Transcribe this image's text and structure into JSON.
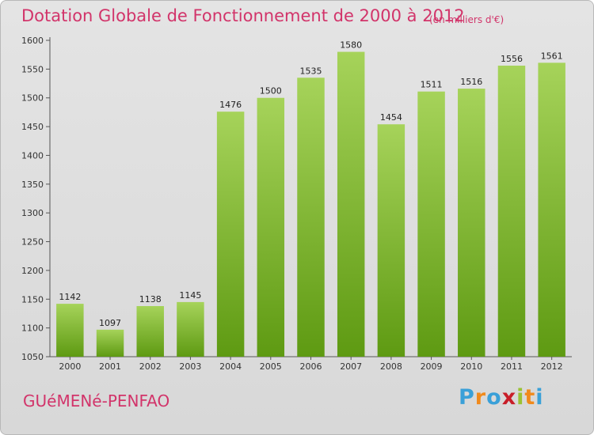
{
  "header": {
    "title": "Dotation Globale de Fonctionnement de 2000 à 2012",
    "subtitle": "(en milliers d'€)"
  },
  "footer": {
    "commune": "GUéMENé-PENFAO",
    "logo": {
      "letters": [
        "P",
        "r",
        "o",
        "x",
        "i",
        "t",
        "i"
      ],
      "colors": [
        "#3aa0d8",
        "#f08a1c",
        "#3aa0d8",
        "#c81e28",
        "#9bc233",
        "#f08a1c",
        "#3aa0d8"
      ]
    }
  },
  "colors": {
    "bar_top": "#a6d35a",
    "bar_bottom": "#5e9a12",
    "title": "#d2346a"
  },
  "chart_data": {
    "type": "bar",
    "categories": [
      "2000",
      "2001",
      "2002",
      "2003",
      "2004",
      "2005",
      "2006",
      "2007",
      "2008",
      "2009",
      "2010",
      "2011",
      "2012"
    ],
    "values": [
      1142,
      1097,
      1138,
      1145,
      1476,
      1500,
      1535,
      1580,
      1454,
      1511,
      1516,
      1556,
      1561
    ],
    "data_labels": [
      "1142",
      "1097",
      "1138",
      "1145",
      "1476",
      "1500",
      "1535",
      "1580",
      "1454",
      "1511",
      "1516",
      "1556",
      "1561"
    ],
    "ylim": [
      1050,
      1600
    ],
    "yticks": [
      1050,
      1100,
      1150,
      1200,
      1250,
      1300,
      1350,
      1400,
      1450,
      1500,
      1550,
      1600
    ],
    "grid": false,
    "legend": "none"
  }
}
